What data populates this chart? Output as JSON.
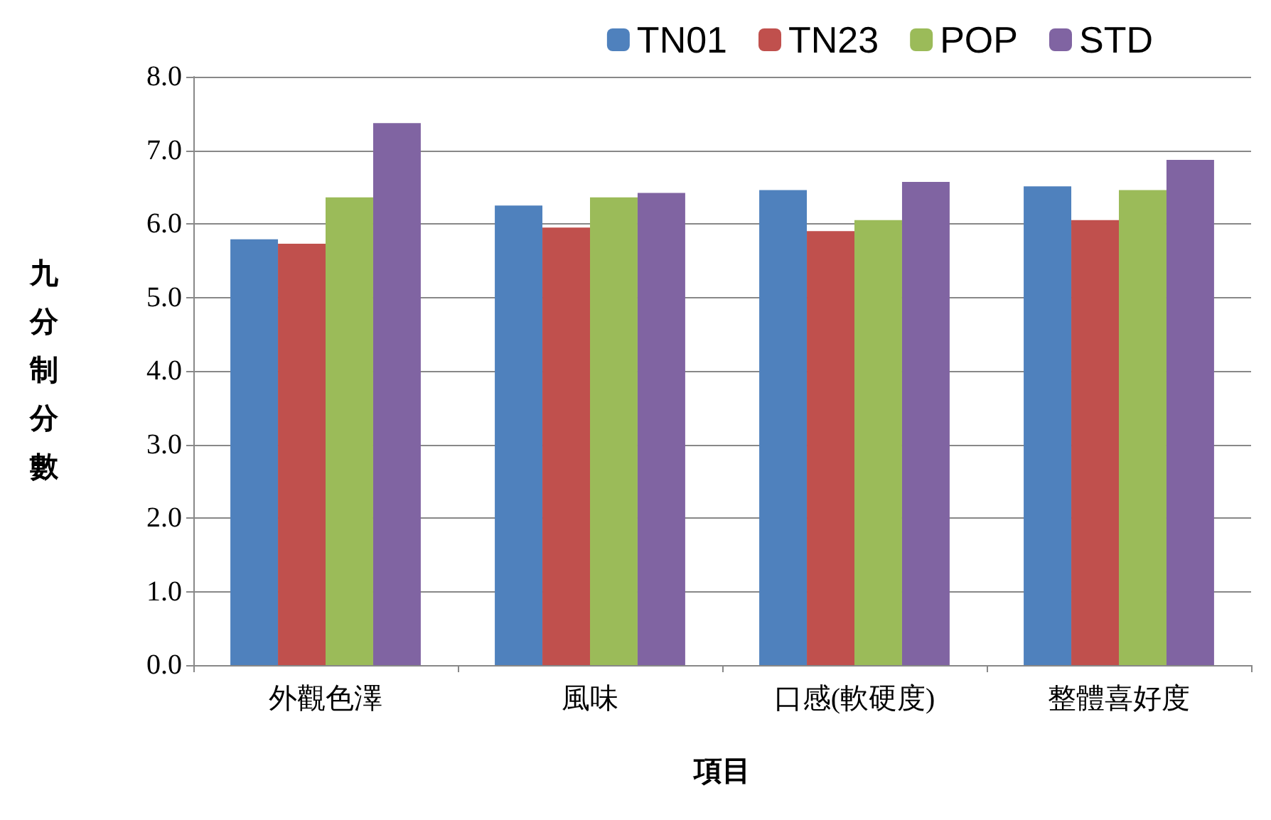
{
  "chart_data": {
    "type": "bar",
    "xlabel": "項目",
    "ylabel": "九分制分數",
    "categories": [
      "外觀色澤",
      "風味",
      "口感(軟硬度)",
      "整體喜好度"
    ],
    "series": [
      {
        "name": "TN01",
        "color": "#4f81bd",
        "values": [
          5.79,
          6.25,
          6.46,
          6.51
        ]
      },
      {
        "name": "TN23",
        "color": "#c0504d",
        "values": [
          5.73,
          5.95,
          5.9,
          6.05
        ]
      },
      {
        "name": "POP",
        "color": "#9bbb59",
        "values": [
          6.36,
          6.36,
          6.05,
          6.46
        ]
      },
      {
        "name": "STD",
        "color": "#8064a2",
        "values": [
          7.37,
          6.42,
          6.57,
          6.87
        ]
      }
    ],
    "ylim": [
      0,
      8
    ],
    "yticks": [
      {
        "value": 0,
        "label": "0.0"
      },
      {
        "value": 1,
        "label": "1.0"
      },
      {
        "value": 2,
        "label": "2.0"
      },
      {
        "value": 3,
        "label": "3.0"
      },
      {
        "value": 4,
        "label": "4.0"
      },
      {
        "value": 5,
        "label": "5.0"
      },
      {
        "value": 6,
        "label": "6.0"
      },
      {
        "value": 7,
        "label": "7.0"
      },
      {
        "value": 8,
        "label": "8.0"
      }
    ],
    "grid": "y",
    "legend": "top right"
  }
}
